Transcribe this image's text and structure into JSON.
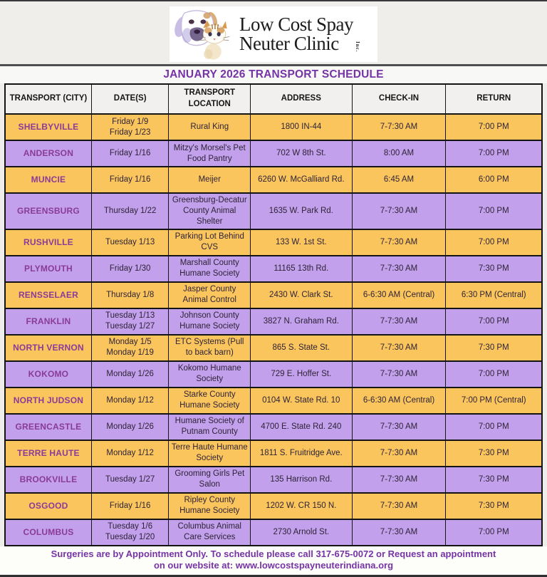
{
  "logo": {
    "line1": "Low Cost Spay",
    "line2": "Neuter Clinic",
    "suffix": "Inc."
  },
  "title": "JANUARY 2026 TRANSPORT SCHEDULE",
  "table": {
    "columns": [
      "TRANSPORT (CITY)",
      "DATE(S)",
      "TRANSPORT LOCATION",
      "ADDRESS",
      "CHECK-IN",
      "RETURN"
    ],
    "rows": [
      {
        "city": "SHELBYVILLE",
        "dates": [
          "Friday 1/9",
          "Friday 1/23"
        ],
        "location": "Rural King",
        "address": "1800 IN-44",
        "checkin": "7-7:30 AM",
        "return": "7:00 PM"
      },
      {
        "city": "ANDERSON",
        "dates": [
          "Friday 1/16"
        ],
        "location": "Mitzy's Morsel's Pet Food Pantry",
        "address": "702 W 8th St.",
        "checkin": "8:00 AM",
        "return": "7:00 PM"
      },
      {
        "city": "MUNCIE",
        "dates": [
          "Friday 1/16"
        ],
        "location": "Meijer",
        "address": "6260 W. McGalliard Rd.",
        "checkin": "6:45 AM",
        "return": "6:00 PM"
      },
      {
        "city": "GREENSBURG",
        "dates": [
          "Thursday 1/22"
        ],
        "location": "Greensburg-Decatur County Animal Shelter",
        "address": "1635 W. Park Rd.",
        "checkin": "7-7:30 AM",
        "return": "7:00 PM"
      },
      {
        "city": "RUSHVILLE",
        "dates": [
          "Tuesday 1/13"
        ],
        "location": "Parking Lot Behind CVS",
        "address": "133 W. 1st St.",
        "checkin": "7-7:30 AM",
        "return": "7:00 PM"
      },
      {
        "city": "PLYMOUTH",
        "dates": [
          "Friday 1/30"
        ],
        "location": "Marshall County Humane Society",
        "address": "11165 13th Rd.",
        "checkin": "7-7:30 AM",
        "return": "7:30 PM"
      },
      {
        "city": "RENSSELAER",
        "dates": [
          "Thursday 1/8"
        ],
        "location": "Jasper County Animal Control",
        "address": "2430 W. Clark St.",
        "checkin": "6-6:30 AM (Central)",
        "return": "6:30 PM (Central)"
      },
      {
        "city": "FRANKLIN",
        "dates": [
          "Tuesday 1/13",
          "Tuesday 1/27"
        ],
        "location": "Johnson County Humane Society",
        "address": "3827 N. Graham Rd.",
        "checkin": "7-7:30 AM",
        "return": "7:00 PM"
      },
      {
        "city": "NORTH VERNON",
        "dates": [
          "Monday 1/5",
          "Monday 1/19"
        ],
        "location": "ETC Systems (Pull to back barn)",
        "address": "865 S. State St.",
        "checkin": "7-7:30 AM",
        "return": "7:30 PM"
      },
      {
        "city": "KOKOMO",
        "dates": [
          "Monday 1/26"
        ],
        "location": "Kokomo Humane Society",
        "address": "729 E. Hoffer St.",
        "checkin": "7-7:30 AM",
        "return": "7:00 PM"
      },
      {
        "city": "NORTH JUDSON",
        "dates": [
          "Monday 1/12"
        ],
        "location": "Starke County Humane Society",
        "address": "0104 W. State Rd. 10",
        "checkin": "6-6:30 AM (Central)",
        "return": "7:00 PM (Central)"
      },
      {
        "city": "GREENCASTLE",
        "dates": [
          "Monday 1/26"
        ],
        "location": "Humane Society of Putnam County",
        "address": "4700 E. State Rd. 240",
        "checkin": "7-7:30 AM",
        "return": "7:00 PM"
      },
      {
        "city": "TERRE HAUTE",
        "dates": [
          "Monday 1/12"
        ],
        "location": "Terre Haute Humane Society",
        "address": "1811 S. Fruitridge Ave.",
        "checkin": "7-7:30 AM",
        "return": "7:30 PM"
      },
      {
        "city": "BROOKVILLE",
        "dates": [
          "Tuesday 1/27"
        ],
        "location": "Grooming Girls Pet Salon",
        "address": "135 Harrison Rd.",
        "checkin": "7-7:30 AM",
        "return": "7:30 PM"
      },
      {
        "city": "OSGOOD",
        "dates": [
          "Friday 1/16"
        ],
        "location": "Ripley County Humane Society",
        "address": "1202 W. CR 150 N.",
        "checkin": "7-7:30 AM",
        "return": "7:30 PM"
      },
      {
        "city": "COLUMBUS",
        "dates": [
          "Tuesday 1/6",
          "Tuesday 1/20"
        ],
        "location": "Columbus Animal Care Services",
        "address": "2730 Arnold St.",
        "checkin": "7-7:30 AM",
        "return": "7:00 PM"
      }
    ]
  },
  "footer": {
    "line1": "Surgeries are by Appointment Only. To schedule please call 317-675-0072 or Request an appointment",
    "line2": "on our website at: www.lowcostspayneuterindiana.org"
  },
  "colors": {
    "orange": "#FBC55E",
    "purple": "#C2A0EC",
    "city_text": "#8A3A99",
    "accent_purple": "#7633A6",
    "body_text": "#2E2336",
    "header_bg": "#F1F0EE",
    "page_bg": "#EFEEEB",
    "border_dark": "#141414",
    "footer_bg": "#FDFDFA"
  }
}
